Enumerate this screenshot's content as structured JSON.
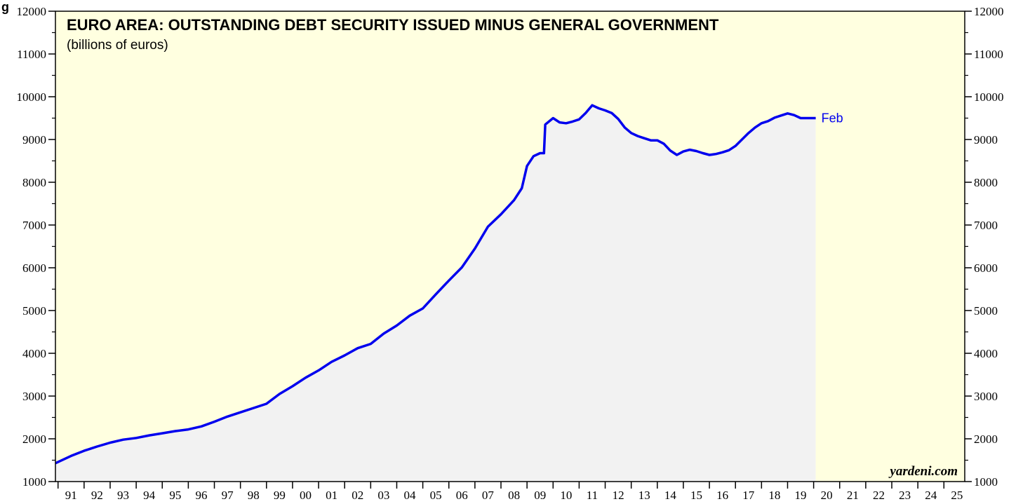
{
  "corner_text": "g",
  "chart_data": {
    "type": "area",
    "title": "EURO AREA: OUTSTANDING DEBT SECURITY ISSUED MINUS GENERAL GOVERNMENT",
    "subtitle": "(billions of euros)",
    "xlabel": "",
    "ylabel": "",
    "xlim": [
      1990.9,
      2025.8
    ],
    "ylim": [
      1000,
      12000
    ],
    "y_ticks": [
      1000,
      2000,
      3000,
      4000,
      5000,
      6000,
      7000,
      8000,
      9000,
      10000,
      11000,
      12000
    ],
    "x_tick_labels": [
      "91",
      "92",
      "93",
      "94",
      "95",
      "96",
      "97",
      "98",
      "99",
      "00",
      "01",
      "02",
      "03",
      "04",
      "05",
      "06",
      "07",
      "08",
      "09",
      "10",
      "11",
      "12",
      "13",
      "14",
      "15",
      "16",
      "17",
      "18",
      "19",
      "20",
      "21",
      "22",
      "23",
      "24",
      "25"
    ],
    "x_tick_years": [
      1991,
      1992,
      1993,
      1994,
      1995,
      1996,
      1997,
      1998,
      1999,
      2000,
      2001,
      2002,
      2003,
      2004,
      2005,
      2006,
      2007,
      2008,
      2009,
      2010,
      2011,
      2012,
      2013,
      2014,
      2015,
      2016,
      2017,
      2018,
      2019,
      2020,
      2021,
      2022,
      2023,
      2024,
      2025
    ],
    "grid": false,
    "background_color": "#ffffe0",
    "area_color": "#f2f2f2",
    "line_color": "#0000ee",
    "end_label": "Feb",
    "source": "yardeni.com",
    "series": [
      {
        "x": [
          1990.9,
          1991.5,
          1992.0,
          1992.5,
          1993.0,
          1993.5,
          1994.0,
          1994.5,
          1995.0,
          1995.5,
          1996.0,
          1996.5,
          1997.0,
          1997.5,
          1998.0,
          1998.5,
          1999.0,
          1999.5,
          2000.0,
          2000.5,
          2001.0,
          2001.5,
          2002.0,
          2002.5,
          2003.0,
          2003.5,
          2004.0,
          2004.5,
          2005.0,
          2005.5,
          2006.0,
          2006.5,
          2007.0,
          2007.5,
          2008.0,
          2008.5,
          2008.8,
          2009.0,
          2009.25,
          2009.5,
          2009.65,
          2009.7,
          2010.0,
          2010.25,
          2010.5,
          2010.75,
          2011.0,
          2011.25,
          2011.5,
          2011.75,
          2012.0,
          2012.25,
          2012.5,
          2012.75,
          2013.0,
          2013.25,
          2013.5,
          2013.75,
          2014.0,
          2014.25,
          2014.5,
          2014.75,
          2015.0,
          2015.25,
          2015.5,
          2015.75,
          2016.0,
          2016.25,
          2016.5,
          2016.75,
          2017.0,
          2017.25,
          2017.5,
          2017.75,
          2018.0,
          2018.25,
          2018.5,
          2018.75,
          2019.0,
          2019.25,
          2019.5,
          2019.75,
          2020.08
        ],
        "values": [
          1430,
          1600,
          1720,
          1820,
          1910,
          1980,
          2020,
          2080,
          2130,
          2180,
          2220,
          2290,
          2400,
          2520,
          2620,
          2720,
          2820,
          3050,
          3230,
          3430,
          3600,
          3800,
          3950,
          4120,
          4220,
          4460,
          4650,
          4880,
          5050,
          5380,
          5700,
          6010,
          6450,
          6960,
          7250,
          7580,
          7860,
          8380,
          8610,
          8680,
          8680,
          9350,
          9500,
          9400,
          9380,
          9420,
          9470,
          9620,
          9800,
          9730,
          9680,
          9620,
          9480,
          9280,
          9150,
          9080,
          9030,
          8980,
          8980,
          8900,
          8740,
          8640,
          8720,
          8760,
          8730,
          8680,
          8640,
          8660,
          8700,
          8750,
          8850,
          9000,
          9150,
          9280,
          9380,
          9430,
          9510,
          9560,
          9610,
          9570,
          9500,
          9500,
          9500
        ]
      }
    ]
  }
}
